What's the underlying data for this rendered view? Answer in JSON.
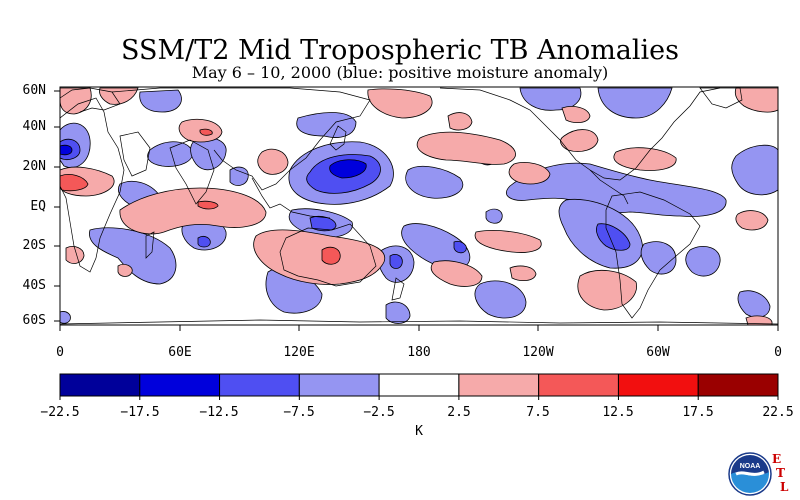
{
  "title": "SSM/T2 Mid Tropospheric TB Anomalies",
  "subtitle": "May 6 – 10, 2000 (blue: positive moisture anomaly)",
  "map": {
    "lat_labels": [
      "60N",
      "40N",
      "20N",
      "EQ",
      "20S",
      "40S",
      "60S"
    ],
    "lon_labels": [
      "0",
      "60E",
      "120E",
      "180",
      "120W",
      "60W",
      "0"
    ]
  },
  "colorbar": {
    "unit": "K",
    "tick_labels": [
      "−22.5",
      "−17.5",
      "−12.5",
      "−7.5",
      "−2.5",
      "2.5",
      "7.5",
      "12.5",
      "17.5",
      "22.5"
    ],
    "colors": [
      "#00009a",
      "#0000dc",
      "#4f4ff2",
      "#9595f2",
      "#ffffff",
      "#f6aaaa",
      "#f45858",
      "#f20f0f",
      "#9a0000"
    ]
  },
  "logo": {
    "name": "NOAA",
    "letters": [
      "E",
      "T",
      "L"
    ]
  }
}
